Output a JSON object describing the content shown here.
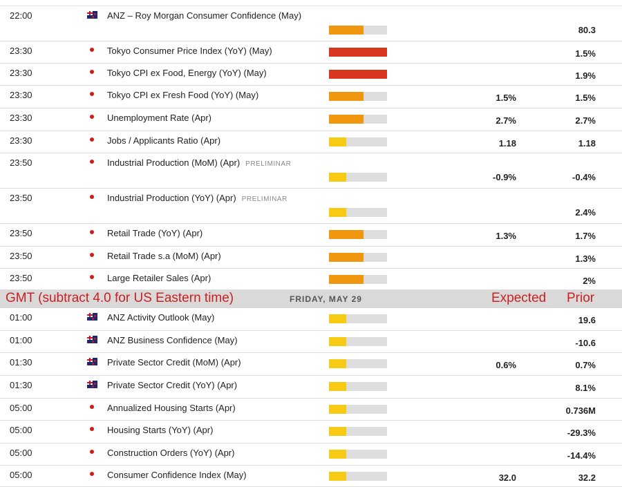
{
  "colors": {
    "high": "#d8361f",
    "medium": "#f0960f",
    "low": "#f7cb13",
    "track": "#dedede",
    "header_text": "#cc1f1f"
  },
  "header": {
    "gmt_note": "GMT (subtract 4.0 for US Eastern time)",
    "date": "FRIDAY, MAY 29",
    "expected_label": "Expected",
    "prior_label": "Prior"
  },
  "rows_before": [
    {
      "time": "22:00",
      "country": "nz",
      "event": "ANZ – Roy Morgan Consumer Confidence (May)",
      "tag": "",
      "impact": "medium",
      "impact_level": 0.6,
      "expected": "",
      "prior": "80.3"
    },
    {
      "time": "23:30",
      "country": "jp",
      "event": "Tokyo Consumer Price Index (YoY) (May)",
      "tag": "",
      "impact": "high",
      "impact_level": 1.0,
      "expected": "",
      "prior": "1.5%"
    },
    {
      "time": "23:30",
      "country": "jp",
      "event": "Tokyo CPI ex Food, Energy (YoY) (May)",
      "tag": "",
      "impact": "high",
      "impact_level": 1.0,
      "expected": "",
      "prior": "1.9%"
    },
    {
      "time": "23:30",
      "country": "jp",
      "event": "Tokyo CPI ex Fresh Food (YoY) (May)",
      "tag": "",
      "impact": "medium",
      "impact_level": 0.6,
      "expected": "1.5%",
      "prior": "1.5%"
    },
    {
      "time": "23:30",
      "country": "jp",
      "event": "Unemployment Rate (Apr)",
      "tag": "",
      "impact": "medium",
      "impact_level": 0.6,
      "expected": "2.7%",
      "prior": "2.7%"
    },
    {
      "time": "23:30",
      "country": "jp",
      "event": "Jobs / Applicants Ratio (Apr)",
      "tag": "",
      "impact": "low",
      "impact_level": 0.3,
      "expected": "1.18",
      "prior": "1.18"
    },
    {
      "time": "23:50",
      "country": "jp",
      "event": "Industrial Production (MoM) (Apr)",
      "tag": "PRELIMINAR",
      "impact": "low",
      "impact_level": 0.3,
      "expected": "-0.9%",
      "prior": "-0.4%"
    },
    {
      "time": "23:50",
      "country": "jp",
      "event": "Industrial Production (YoY) (Apr)",
      "tag": "PRELIMINAR",
      "impact": "low",
      "impact_level": 0.3,
      "expected": "",
      "prior": "2.4%"
    },
    {
      "time": "23:50",
      "country": "jp",
      "event": "Retail Trade (YoY) (Apr)",
      "tag": "",
      "impact": "medium",
      "impact_level": 0.6,
      "expected": "1.3%",
      "prior": "1.7%"
    },
    {
      "time": "23:50",
      "country": "jp",
      "event": "Retail Trade s.a (MoM) (Apr)",
      "tag": "",
      "impact": "medium",
      "impact_level": 0.6,
      "expected": "",
      "prior": "1.3%"
    },
    {
      "time": "23:50",
      "country": "jp",
      "event": "Large Retailer Sales (Apr)",
      "tag": "",
      "impact": "medium",
      "impact_level": 0.6,
      "expected": "",
      "prior": "2%"
    }
  ],
  "rows_after": [
    {
      "time": "01:00",
      "country": "nz",
      "event": "ANZ Activity Outlook (May)",
      "tag": "",
      "impact": "low",
      "impact_level": 0.3,
      "expected": "",
      "prior": "19.6"
    },
    {
      "time": "01:00",
      "country": "nz",
      "event": "ANZ Business Confidence (May)",
      "tag": "",
      "impact": "low",
      "impact_level": 0.3,
      "expected": "",
      "prior": "-10.6"
    },
    {
      "time": "01:30",
      "country": "nz",
      "event": "Private Sector Credit (MoM) (Apr)",
      "tag": "",
      "impact": "low",
      "impact_level": 0.3,
      "expected": "0.6%",
      "prior": "0.7%"
    },
    {
      "time": "01:30",
      "country": "nz",
      "event": "Private Sector Credit (YoY) (Apr)",
      "tag": "",
      "impact": "low",
      "impact_level": 0.3,
      "expected": "",
      "prior": "8.1%"
    },
    {
      "time": "05:00",
      "country": "jp",
      "event": "Annualized Housing Starts (Apr)",
      "tag": "",
      "impact": "low",
      "impact_level": 0.3,
      "expected": "",
      "prior": "0.736M"
    },
    {
      "time": "05:00",
      "country": "jp",
      "event": "Housing Starts (YoY) (Apr)",
      "tag": "",
      "impact": "low",
      "impact_level": 0.3,
      "expected": "",
      "prior": "-29.3%"
    },
    {
      "time": "05:00",
      "country": "jp",
      "event": "Construction Orders (YoY) (Apr)",
      "tag": "",
      "impact": "low",
      "impact_level": 0.3,
      "expected": "",
      "prior": "-14.4%"
    },
    {
      "time": "05:00",
      "country": "jp",
      "event": "Consumer Confidence Index (May)",
      "tag": "",
      "impact": "low",
      "impact_level": 0.3,
      "expected": "32.0",
      "prior": "32.2"
    }
  ]
}
